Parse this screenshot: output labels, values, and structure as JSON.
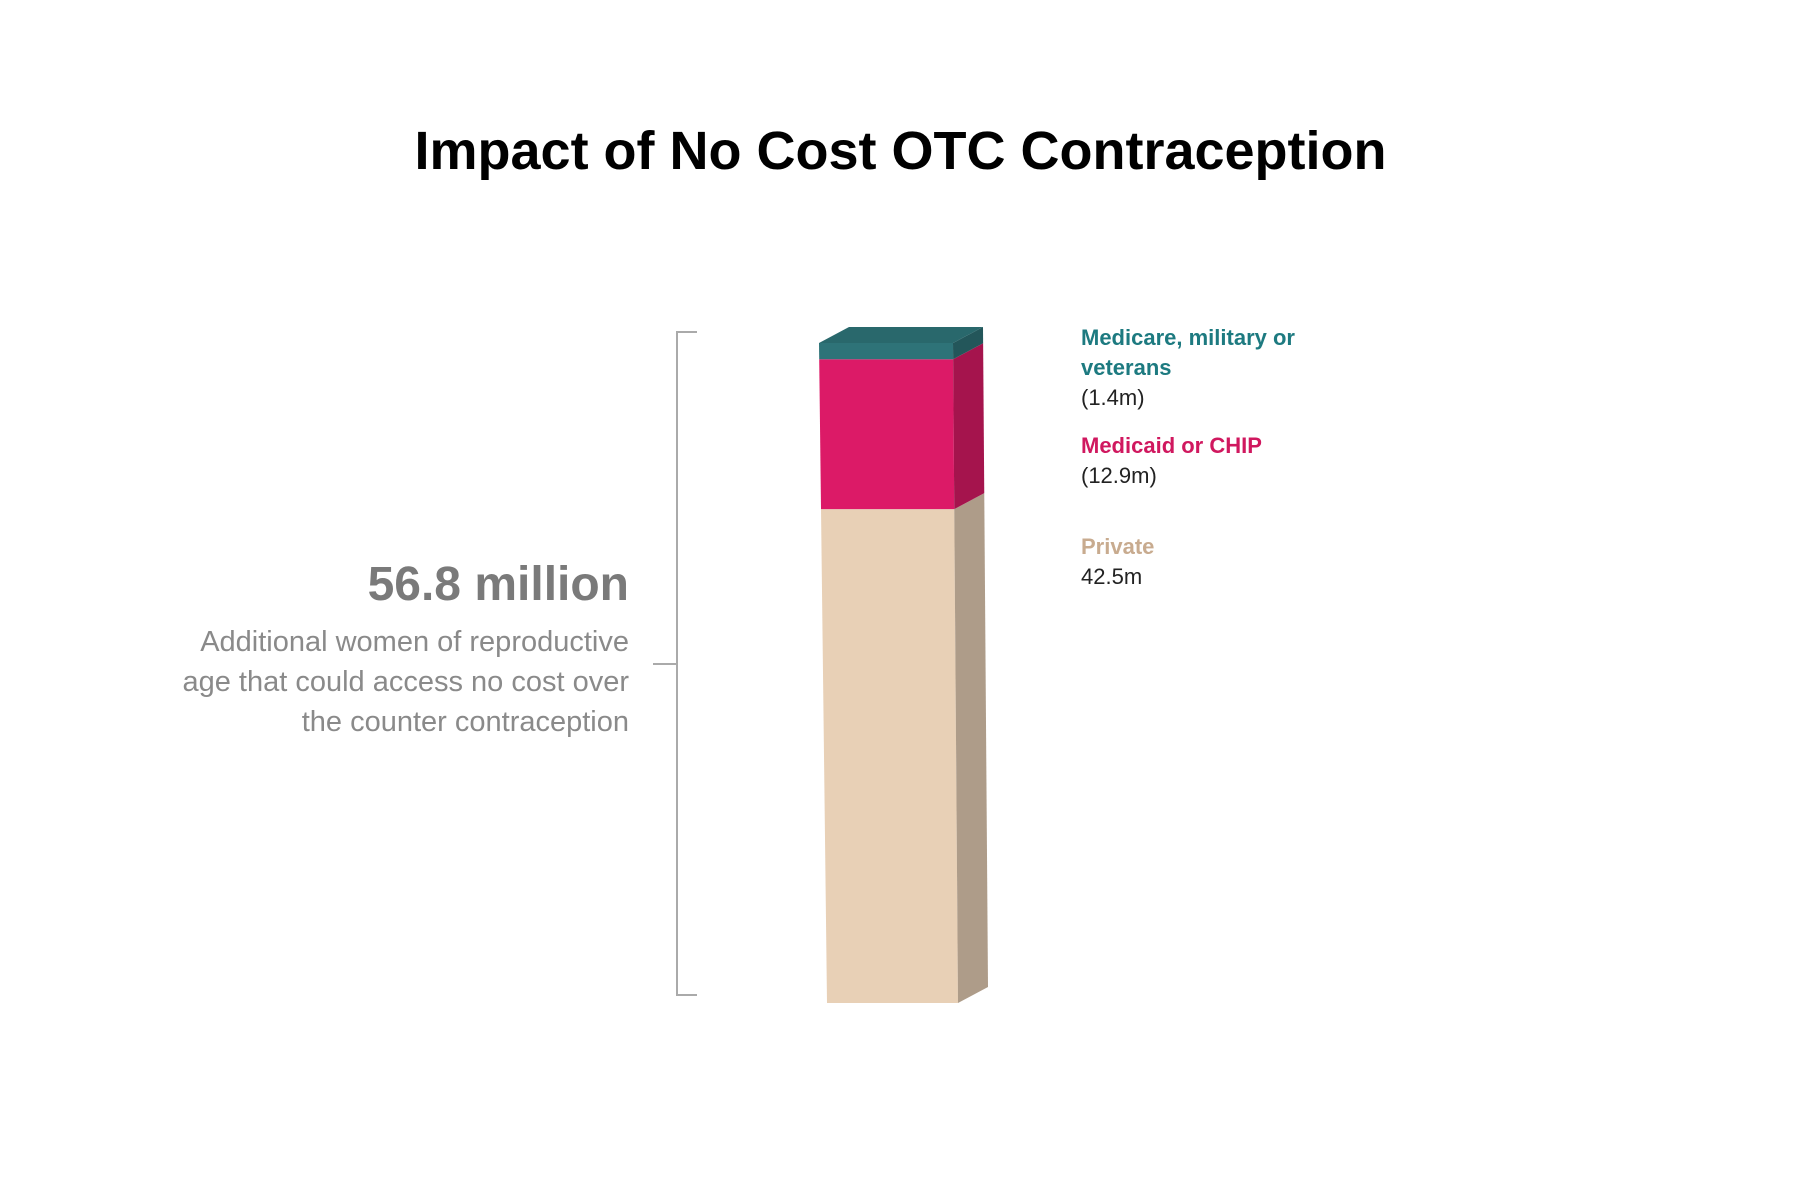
{
  "title": "Impact of No Cost OTC Contraception",
  "callout": {
    "value": "56.8 million",
    "description_lines": [
      "Additional women of reproductive",
      "age that could access no cost over",
      "the counter contraception"
    ]
  },
  "colors": {
    "medicare": "#2e7378",
    "medicaid": "#dc1a67",
    "private": "#e8d0b6",
    "bracket": "#aaaaaa",
    "callout_value": "#7a7a7a",
    "callout_desc": "#8a8a8a"
  },
  "legend": [
    {
      "key": "medicare",
      "name_lines": [
        "Medicare, military or",
        "veterans"
      ],
      "value": "(1.4m)",
      "color": "#1d7a80"
    },
    {
      "key": "medicaid",
      "name_lines": [
        "Medicaid or CHIP"
      ],
      "value": "(12.9m)",
      "color": "#d0185f"
    },
    {
      "key": "private",
      "name_lines": [
        "Private"
      ],
      "value": "42.5m",
      "color": "#c8ab8f"
    }
  ],
  "chart_data": {
    "type": "bar",
    "stacked": true,
    "categories": [
      ""
    ],
    "total": 56.8,
    "series": [
      {
        "name": "Private",
        "values": [
          42.5
        ]
      },
      {
        "name": "Medicaid or CHIP",
        "values": [
          12.9
        ]
      },
      {
        "name": "Medicare, military or veterans",
        "values": [
          1.4
        ]
      }
    ],
    "title": "Impact of No Cost OTC Contraception",
    "xlabel": "",
    "ylabel": "",
    "grid": false,
    "legend_position": "right"
  }
}
